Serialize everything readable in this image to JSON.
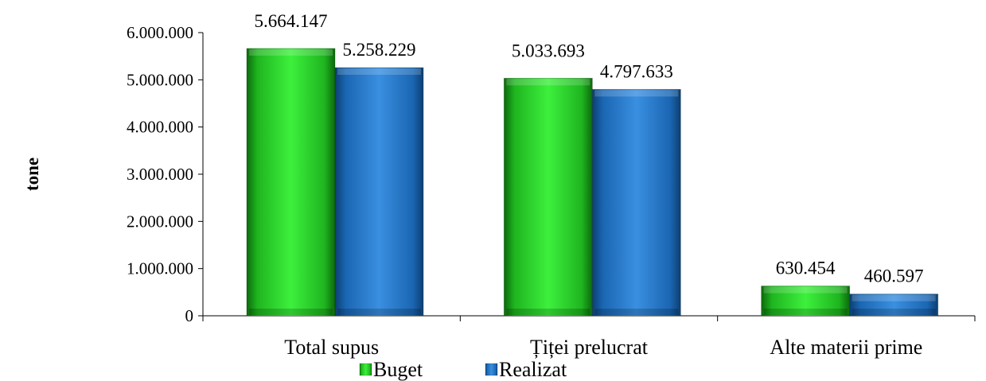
{
  "chart_data": {
    "type": "bar",
    "categories": [
      "Total supus",
      "Țiței prelucrat",
      "Alte materii prime"
    ],
    "series": [
      {
        "name": "Buget",
        "values": [
          5664147,
          5033693,
          630454
        ],
        "labels": [
          "5.664.147",
          "5.033.693",
          "630.454"
        ],
        "color": "#22cc22"
      },
      {
        "name": "Realizat",
        "values": [
          5258229,
          4797633,
          460597
        ],
        "labels": [
          "5.258.229",
          "4.797.633",
          "460.597"
        ],
        "color": "#2277cc"
      }
    ],
    "ylabel": "tone",
    "ylim": [
      0,
      6000000
    ],
    "yticks": [
      0,
      1000000,
      2000000,
      3000000,
      4000000,
      5000000,
      6000000
    ],
    "ytick_labels": [
      "0",
      "1.000.000",
      "2.000.000",
      "3.000.000",
      "4.000.000",
      "5.000.000",
      "6.000.000"
    ],
    "grid": false,
    "legend_position": "bottom"
  }
}
